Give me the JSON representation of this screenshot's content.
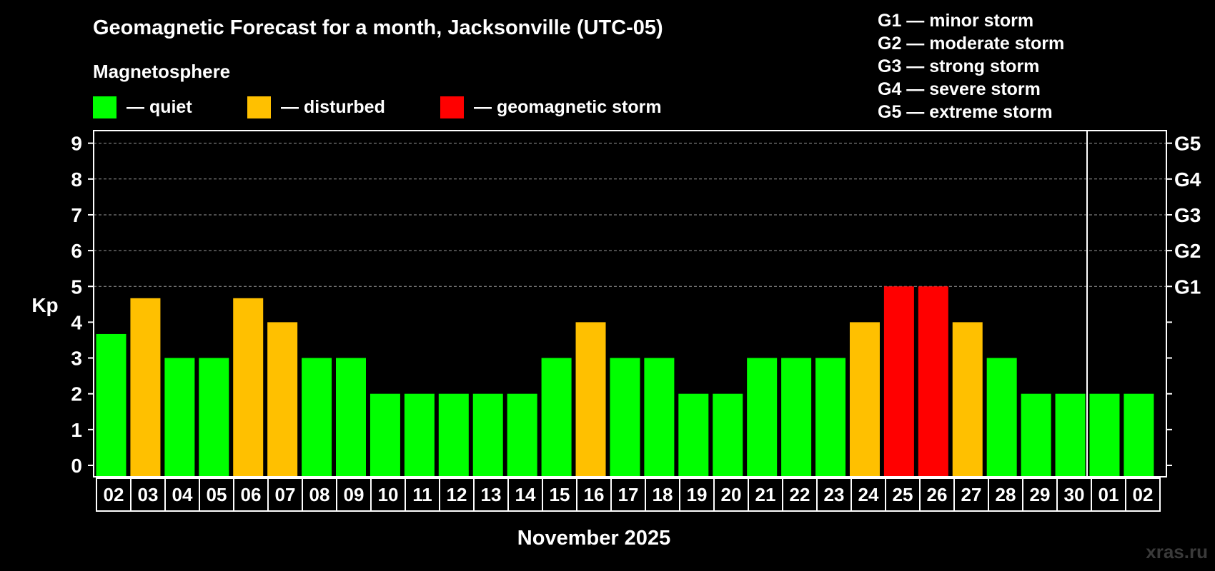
{
  "chart_data": {
    "type": "bar",
    "title": "Geomagnetic Forecast for a month, Jacksonville (UTC-05)",
    "subtitle": "Magnetosphere",
    "ylabel": "Kp",
    "xlabel": "November 2025",
    "ylim": [
      0,
      9
    ],
    "yticks": [
      "0",
      "1",
      "2",
      "3",
      "4",
      "5",
      "6",
      "7",
      "8",
      "9"
    ],
    "right_axis": [
      {
        "kp": 5,
        "label": "G1"
      },
      {
        "kp": 6,
        "label": "G2"
      },
      {
        "kp": 7,
        "label": "G3"
      },
      {
        "kp": 8,
        "label": "G4"
      },
      {
        "kp": 9,
        "label": "G5"
      }
    ],
    "legend": [
      {
        "key": "quiet",
        "label": "— quiet",
        "color": "#00ff00"
      },
      {
        "key": "disturbed",
        "label": "— disturbed",
        "color": "#ffc000"
      },
      {
        "key": "storm",
        "label": "— geomagnetic storm",
        "color": "#ff0000"
      }
    ],
    "g_legend": [
      "G1 — minor storm",
      "G2 — moderate storm",
      "G3 — strong storm",
      "G4 — severe storm",
      "G5 — extreme storm"
    ],
    "month_divider_after_index": 28,
    "categories": [
      "02",
      "03",
      "04",
      "05",
      "06",
      "07",
      "08",
      "09",
      "10",
      "11",
      "12",
      "13",
      "14",
      "15",
      "16",
      "17",
      "18",
      "19",
      "20",
      "21",
      "22",
      "23",
      "24",
      "25",
      "26",
      "27",
      "28",
      "29",
      "30",
      "01",
      "02"
    ],
    "values": [
      3.67,
      4.67,
      3,
      3,
      4.67,
      4,
      3,
      3,
      2,
      2,
      2,
      2,
      2,
      3,
      4,
      3,
      3,
      2,
      2,
      3,
      3,
      3,
      4,
      5,
      5,
      4,
      3,
      2,
      2,
      2,
      2
    ],
    "status": [
      "quiet",
      "disturbed",
      "quiet",
      "quiet",
      "disturbed",
      "disturbed",
      "quiet",
      "quiet",
      "quiet",
      "quiet",
      "quiet",
      "quiet",
      "quiet",
      "quiet",
      "disturbed",
      "quiet",
      "quiet",
      "quiet",
      "quiet",
      "quiet",
      "quiet",
      "quiet",
      "disturbed",
      "storm",
      "storm",
      "disturbed",
      "quiet",
      "quiet",
      "quiet",
      "quiet",
      "quiet"
    ]
  },
  "watermark": "xras.ru"
}
